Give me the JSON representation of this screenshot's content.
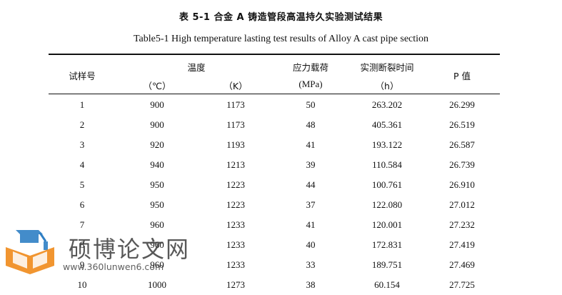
{
  "caption": {
    "cn": "表 5-1  合金 A 铸造管段高温持久实验测试结果",
    "en": "Table5-1 High temperature lasting test results of Alloy A cast pipe section"
  },
  "table": {
    "headers": {
      "sample": "试样号",
      "temperature": "温度",
      "celsius_unit": "（℃）",
      "kelvin_unit": "（K）",
      "stress": "应力载荷",
      "stress_unit": "(MPa)",
      "rupture_time": "实测断裂时间",
      "rupture_unit": "（h）",
      "p_value": "P 值"
    },
    "rows": [
      [
        "1",
        "900",
        "1173",
        "50",
        "263.202",
        "26.299"
      ],
      [
        "2",
        "900",
        "1173",
        "48",
        "405.361",
        "26.519"
      ],
      [
        "3",
        "920",
        "1193",
        "41",
        "193.122",
        "26.587"
      ],
      [
        "4",
        "940",
        "1213",
        "39",
        "110.584",
        "26.739"
      ],
      [
        "5",
        "950",
        "1223",
        "44",
        "100.761",
        "26.910"
      ],
      [
        "6",
        "950",
        "1223",
        "37",
        "122.080",
        "27.012"
      ],
      [
        "7",
        "960",
        "1233",
        "41",
        "120.001",
        "27.232"
      ],
      [
        "8",
        "960",
        "1233",
        "40",
        "172.831",
        "27.419"
      ],
      [
        "9",
        "960",
        "1233",
        "33",
        "189.751",
        "27.469"
      ],
      [
        "10",
        "1000",
        "1273",
        "38",
        "60.154",
        "27.725"
      ]
    ]
  },
  "watermark": {
    "text": "硕博论文网",
    "url": "www.360lunwen6.com",
    "colors": {
      "blue": "#2f7fc4",
      "orange": "#f08c1e",
      "gray": "#3c3c3c"
    }
  }
}
